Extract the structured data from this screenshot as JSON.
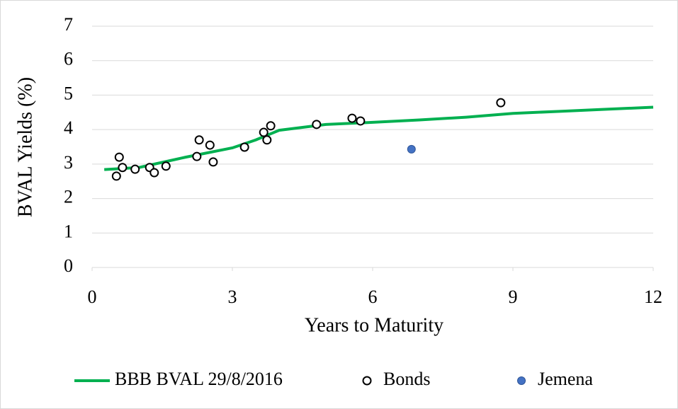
{
  "chart_data": {
    "type": "scatter",
    "x_label": "Years to Maturity",
    "y_label": "BVAL Yields (%)",
    "xlim": [
      0,
      12
    ],
    "xticks": [
      0,
      3,
      6,
      9,
      12
    ],
    "ylim": [
      0,
      7
    ],
    "yticks": [
      0,
      1,
      2,
      3,
      4,
      5,
      6,
      7
    ],
    "grid": true,
    "legend": "bottom",
    "series": [
      {
        "name": "BBB BVAL 29/8/2016",
        "type": "line",
        "color": "#00b050",
        "x": [
          0.26,
          1,
          2,
          3,
          3.5,
          4,
          5,
          6,
          7,
          8,
          9,
          10,
          11,
          12
        ],
        "y": [
          2.84,
          2.9,
          3.2,
          3.47,
          3.7,
          3.98,
          4.15,
          4.21,
          4.28,
          4.36,
          4.47,
          4.53,
          4.59,
          4.65
        ]
      },
      {
        "name": "Bonds",
        "type": "scatter",
        "color": "#000000",
        "x": [
          0.52,
          0.58,
          0.65,
          0.92,
          1.23,
          1.33,
          1.58,
          2.24,
          2.29,
          2.52,
          2.59,
          3.26,
          3.67,
          3.74,
          3.82,
          4.8,
          5.56,
          5.74,
          8.74
        ],
        "y": [
          2.65,
          3.2,
          2.9,
          2.85,
          2.9,
          2.75,
          2.94,
          3.22,
          3.7,
          3.55,
          3.06,
          3.49,
          3.92,
          3.7,
          4.11,
          4.15,
          4.33,
          4.25,
          4.78
        ]
      },
      {
        "name": "Jemena",
        "type": "scatter",
        "color": "#4472c4",
        "x": [
          6.83
        ],
        "y": [
          3.43
        ]
      }
    ]
  }
}
